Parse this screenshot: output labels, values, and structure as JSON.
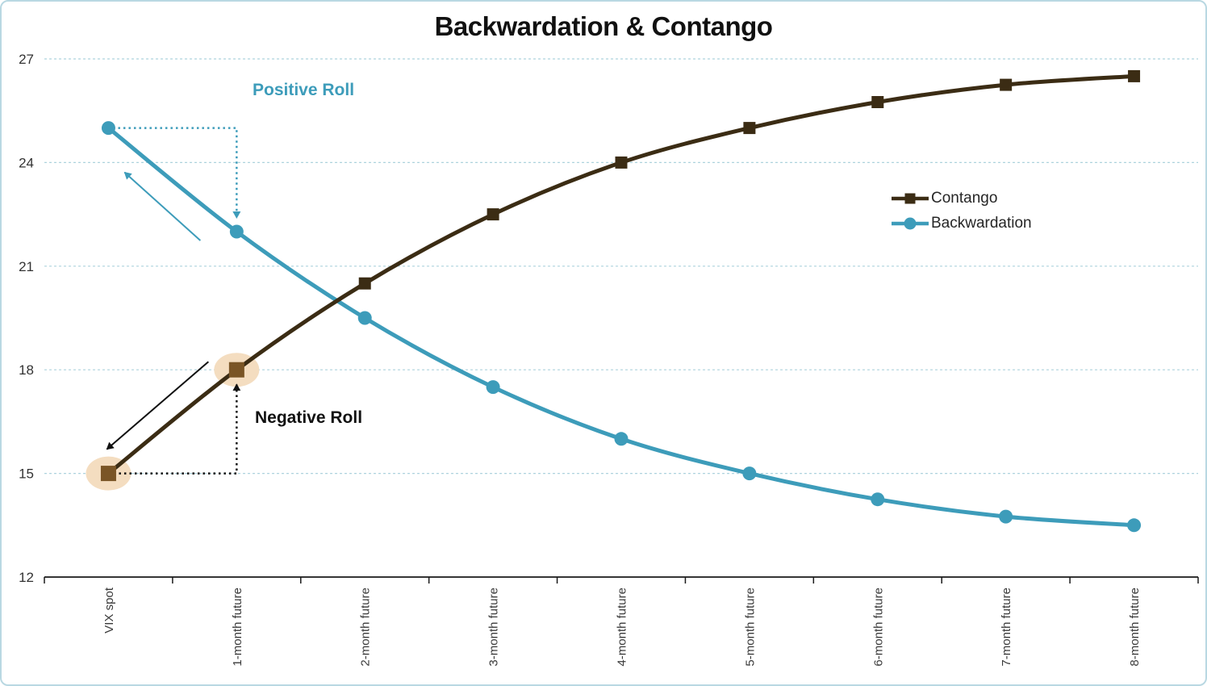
{
  "chart_data": {
    "type": "line",
    "title": "Backwardation & Contango",
    "categories": [
      "VIX spot",
      "1-month future",
      "2-month future",
      "3-month future",
      "4-month future",
      "5-month future",
      "6-month future",
      "7-month future",
      "8-month future"
    ],
    "series": [
      {
        "name": "Contango",
        "marker": "square",
        "color": "#3B2C14",
        "values": [
          15,
          18,
          20.5,
          22.5,
          24,
          25,
          25.75,
          26.25,
          26.5
        ]
      },
      {
        "name": "Backwardation",
        "marker": "circle",
        "color": "#3D9CBA",
        "values": [
          25,
          22,
          19.5,
          17.5,
          16,
          15,
          14.25,
          13.75,
          13.5
        ]
      }
    ],
    "xlabel": "",
    "ylabel": "",
    "ylim": [
      12,
      27
    ],
    "yticks": [
      12,
      15,
      18,
      21,
      24,
      27
    ],
    "grid": {
      "horizontal": true,
      "style": "dashed",
      "color": "#AED3DE"
    },
    "axis_color": "#1A1A1A",
    "tick_label_color": "#3A3A3A",
    "legend_position": "center-right",
    "annotations": {
      "positive_roll": {
        "label": "Positive Roll",
        "color": "#3D9CBA",
        "series": "Backwardation",
        "from_category": "VIX spot",
        "to_category": "1-month future"
      },
      "negative_roll": {
        "label": "Negative Roll",
        "color": "#111111",
        "series": "Contango",
        "from_category": "VIX spot",
        "to_category": "1-month future"
      },
      "highlighted_points": {
        "series": "Contango",
        "categories": [
          "VIX spot",
          "1-month future"
        ],
        "highlight_fill": "#F4DDC0",
        "marker_color": "#7A5526"
      }
    }
  }
}
